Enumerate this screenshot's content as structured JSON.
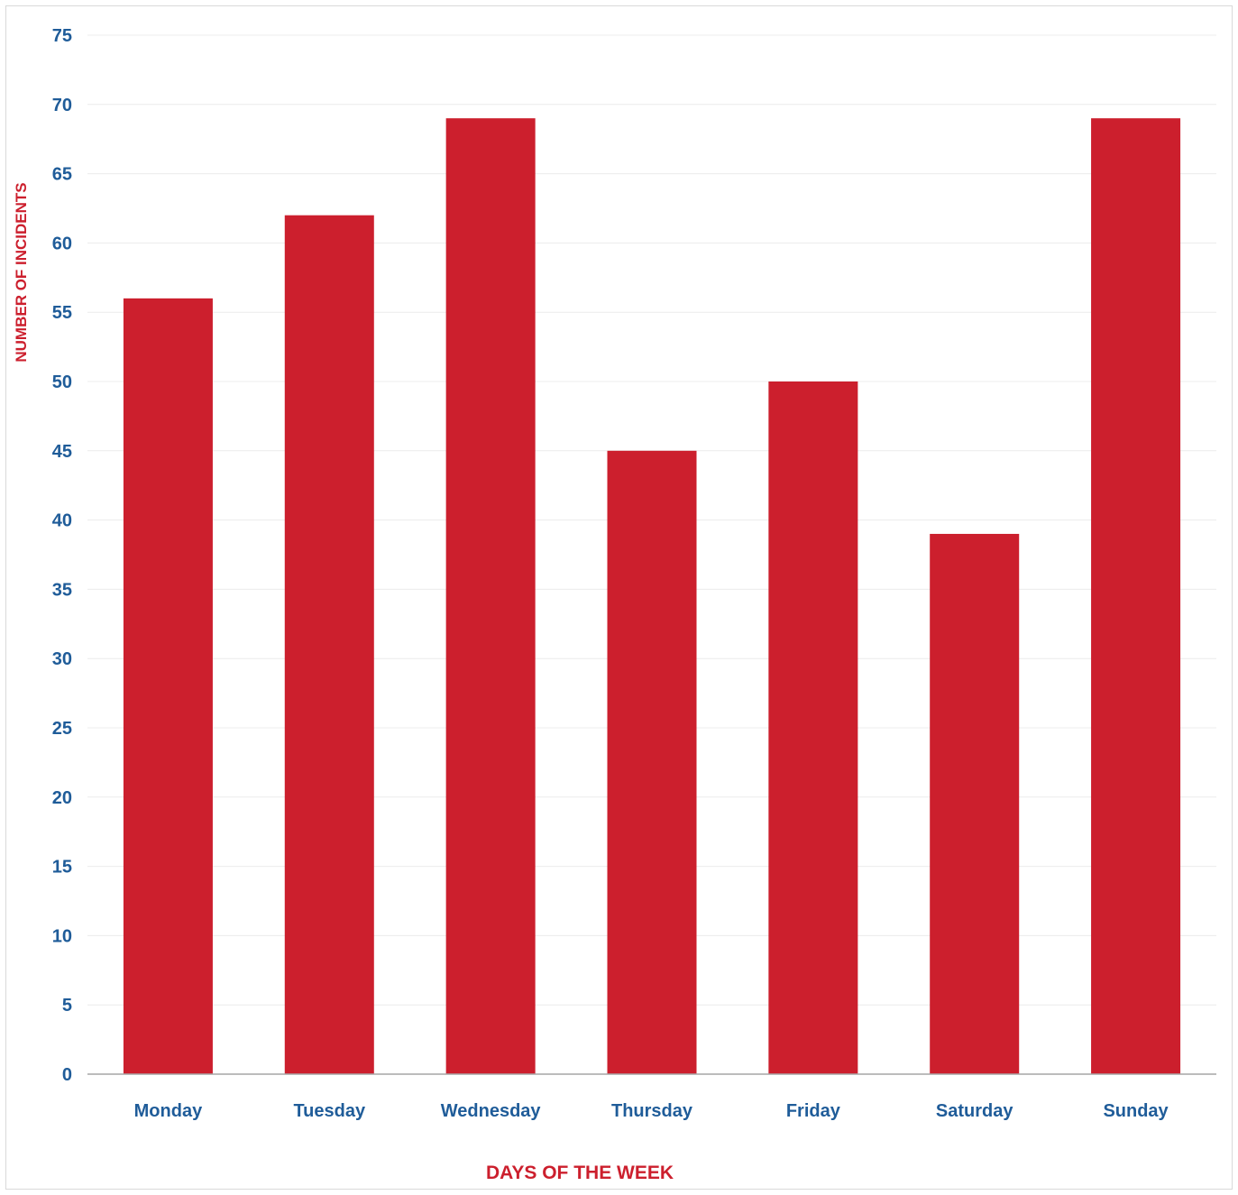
{
  "chart_data": {
    "type": "bar",
    "categories": [
      "Monday",
      "Tuesday",
      "Wednesday",
      "Thursday",
      "Friday",
      "Saturday",
      "Sunday"
    ],
    "values": [
      56,
      62,
      69,
      45,
      50,
      39,
      69
    ],
    "xlabel": "DAYS OF THE WEEK",
    "ylabel": "NUMBER OF INCIDENTS",
    "ylim": [
      0,
      75
    ],
    "yticks": [
      "0",
      "5",
      "10",
      "15",
      "20",
      "25",
      "30",
      "35",
      "40",
      "45",
      "50",
      "55",
      "60",
      "65",
      "70",
      "75"
    ],
    "grid": true,
    "legend": "none",
    "colors": {
      "bar": "#cc1f2d",
      "tick_labels": "#1f5c99",
      "axis_titles": "#cc1f2d",
      "gridlines": "#ececec",
      "axis_line": "#a6a6a6"
    }
  }
}
